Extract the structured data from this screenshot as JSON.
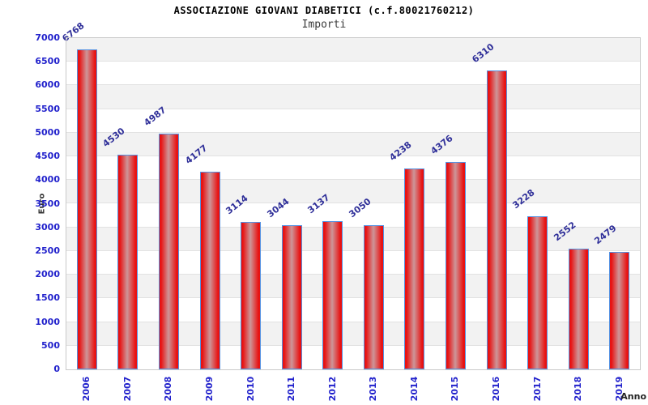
{
  "header": {
    "title": "ASSOCIAZIONE GIOVANI DIABETICI (c.f.80021760212)",
    "subtitle": "Importi"
  },
  "chart_data": {
    "type": "bar",
    "title": "ASSOCIAZIONE GIOVANI DIABETICI (c.f.80021760212)",
    "subtitle": "Importi",
    "categories": [
      "2006",
      "2007",
      "2008",
      "2009",
      "2010",
      "2011",
      "2012",
      "2013",
      "2014",
      "2015",
      "2016",
      "2017",
      "2018",
      "2019"
    ],
    "values": [
      6768,
      4530,
      4987,
      4177,
      3114,
      3044,
      3137,
      3050,
      4238,
      4376,
      6310,
      3228,
      2552,
      2479
    ],
    "xlabel": "Anno",
    "ylabel": "Euro",
    "ylim": [
      0,
      7000
    ],
    "ytick_step": 500,
    "grid": "horizontal-bands",
    "legend": "none",
    "colors": {
      "bar_edge": "#e81212",
      "bar_mid": "#cd9699",
      "bar_border": "#5592e2",
      "tick_label": "#2222cc",
      "value_label": "#2f2f99",
      "band_dark": "#f2f2f2",
      "band_light": "#ffffff",
      "gridline": "#e2e2e2",
      "plot_border": "#c9c9c9",
      "axis_title": "#333333"
    }
  }
}
